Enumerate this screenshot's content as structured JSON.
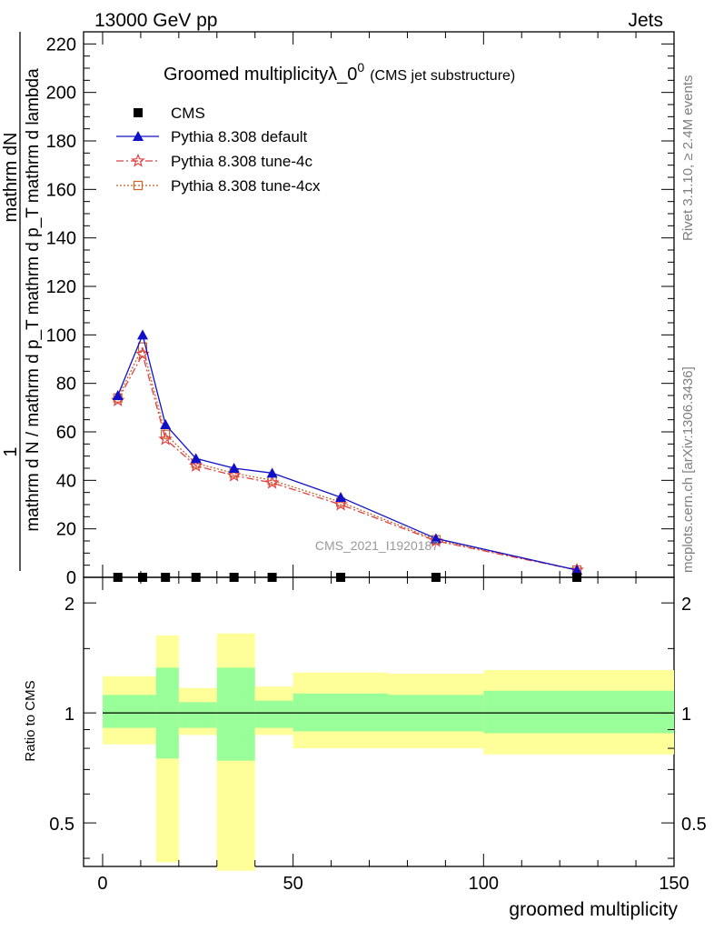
{
  "header": {
    "left": "13000 GeV pp",
    "right": "Jets"
  },
  "side_labels": {
    "rivet": "Rivet 3.1.10, ≥ 2.4M events",
    "mcplots": "mcplots.cern.ch [arXiv:1306.3436]"
  },
  "watermark": "CMS_2021_I1920187",
  "chart_data": [
    {
      "type": "line",
      "title_main": "Groomed multiplicityλ_0",
      "title_sup": "0",
      "title_sub": "(CMS jet substructure)",
      "ylabel_num": "1",
      "ylabel_num2": "mathrm dN",
      "ylabel_den": "mathrm d N / mathrm d p_T mathrm d p_T mathrm d lambda",
      "xlim": [
        -5,
        150
      ],
      "ylim": [
        0,
        225
      ],
      "yticks": [
        0,
        20,
        40,
        60,
        80,
        100,
        120,
        140,
        160,
        180,
        200,
        220
      ],
      "xticks": [
        0,
        50,
        100,
        150
      ],
      "legend": [
        "CMS",
        "Pythia 8.308 default",
        "Pythia 8.308 tune-4c",
        "Pythia 8.308 tune-4cx"
      ],
      "legend_position": "top-left",
      "series": [
        {
          "name": "CMS",
          "color": "#000000",
          "marker": "square",
          "x": [
            4,
            10.5,
            16.5,
            24.5,
            34.5,
            44.5,
            62.5,
            87.5,
            124.5
          ],
          "y": [
            0,
            0,
            0,
            0,
            0,
            0,
            0,
            0,
            0
          ]
        },
        {
          "name": "Pythia 8.308 default",
          "color": "#1010c8",
          "marker": "triangle",
          "x": [
            4,
            10.5,
            16.5,
            24.5,
            34.5,
            44.5,
            62.5,
            87.5,
            124.5
          ],
          "y": [
            75,
            100,
            63,
            49,
            45,
            43,
            33,
            16,
            3
          ]
        },
        {
          "name": "Pythia 8.308 tune-4c",
          "color": "#e04040",
          "marker": "star",
          "x": [
            4,
            10.5,
            16.5,
            24.5,
            34.5,
            44.5,
            62.5,
            87.5,
            124.5
          ],
          "y": [
            73,
            92,
            57,
            46,
            42,
            39,
            30,
            15,
            3
          ]
        },
        {
          "name": "Pythia 8.308 tune-4cx",
          "color": "#c86428",
          "marker": "open-square",
          "x": [
            4,
            10.5,
            16.5,
            24.5,
            34.5,
            44.5,
            62.5,
            87.5,
            124.5
          ],
          "y": [
            74,
            95,
            59,
            47,
            43,
            40,
            31,
            15.5,
            3
          ]
        }
      ]
    },
    {
      "type": "area",
      "ylabel": "Ratio to CMS",
      "xlabel": "groomed multiplicity",
      "xlim": [
        -5,
        150
      ],
      "ylim": [
        0.38,
        2.35
      ],
      "yscale": "log",
      "yticks": [
        0.5,
        1,
        2
      ],
      "ytick_labels": [
        "0.5",
        "1",
        "2"
      ],
      "xticks": [
        0,
        50,
        100,
        150
      ],
      "xtick_labels": [
        "0",
        "50",
        "100",
        "150"
      ],
      "bins": [
        {
          "x0": 0,
          "x1": 14,
          "inner": [
            0.91,
            1.12
          ],
          "outer": [
            0.82,
            1.26
          ]
        },
        {
          "x0": 14,
          "x1": 20,
          "inner": [
            0.75,
            1.33
          ],
          "outer": [
            0.39,
            1.63
          ]
        },
        {
          "x0": 20,
          "x1": 30,
          "inner": [
            0.91,
            1.07
          ],
          "outer": [
            0.87,
            1.17
          ]
        },
        {
          "x0": 30,
          "x1": 40,
          "inner": [
            0.74,
            1.33
          ],
          "outer": [
            0.37,
            1.65
          ]
        },
        {
          "x0": 40,
          "x1": 50,
          "inner": [
            0.91,
            1.08
          ],
          "outer": [
            0.87,
            1.18
          ]
        },
        {
          "x0": 50,
          "x1": 75,
          "inner": [
            0.89,
            1.13
          ],
          "outer": [
            0.8,
            1.29
          ]
        },
        {
          "x0": 75,
          "x1": 100,
          "inner": [
            0.89,
            1.12
          ],
          "outer": [
            0.8,
            1.28
          ]
        },
        {
          "x0": 100,
          "x1": 150,
          "inner": [
            0.88,
            1.15
          ],
          "outer": [
            0.77,
            1.31
          ]
        }
      ],
      "inner_color": "#99ff99",
      "outer_color": "#ffff99"
    }
  ]
}
